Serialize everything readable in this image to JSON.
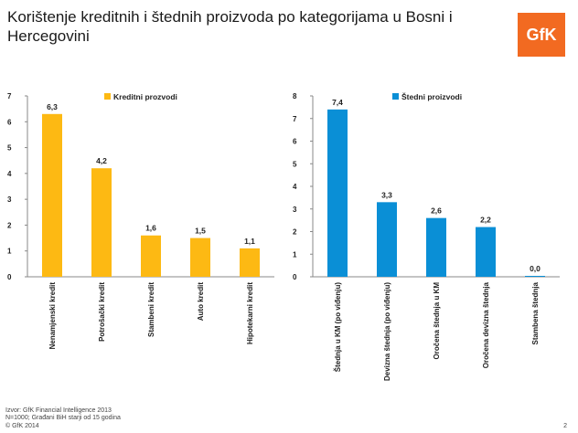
{
  "title": "Korištenje kreditnih i štednih proizvoda po kategorijama u Bosni i Hercegovini",
  "logo": "GfK",
  "chart_data": [
    {
      "type": "bar",
      "categories": [
        "Nenamjenski kredit",
        "Potrošački kredit",
        "Stambeni kredit",
        "Auto kredit",
        "Hipotekarni kredit"
      ],
      "series": [
        {
          "name": "Kreditni prozvodi",
          "values": [
            6.3,
            4.2,
            1.6,
            1.5,
            1.1
          ]
        }
      ],
      "data_labels": [
        "6,3",
        "4,2",
        "1,6",
        "1,5",
        "1,1"
      ],
      "ylim": [
        0,
        7
      ],
      "yticks": [
        "0",
        "1",
        "2",
        "3",
        "4",
        "5",
        "6",
        "7"
      ],
      "color": "#FDB913",
      "legend": "top"
    },
    {
      "type": "bar",
      "categories": [
        "Štednja u KM (po viđenju)",
        "Devizna štednja (po viđenju)",
        "Oročena štednja u KM",
        "Oročena devizna štednja",
        "Stambena štednja"
      ],
      "series": [
        {
          "name": "Štedni proizvodi",
          "values": [
            7.4,
            3.3,
            2.6,
            2.2,
            0.0
          ]
        }
      ],
      "data_labels": [
        "7,4",
        "3,3",
        "2,6",
        "2,2",
        "0,0"
      ],
      "ylim": [
        0,
        8
      ],
      "yticks": [
        "0",
        "1",
        "2",
        "3",
        "4",
        "5",
        "6",
        "7",
        "8"
      ],
      "color": "#0A8FD6",
      "legend": "top"
    }
  ],
  "footer": {
    "source": "Izvor: GfK Financial Intelligence 2013",
    "sample": "N=1000; Građani BiH starji od 15 godina",
    "copyright": "© GfK 2014",
    "page": "2"
  }
}
